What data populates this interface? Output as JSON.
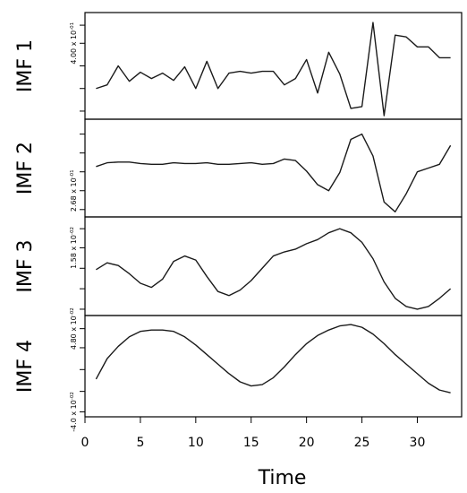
{
  "chart_data": {
    "type": "line",
    "xlabel": "Time",
    "xlim": [
      0,
      34
    ],
    "x_ticks": [
      "0",
      "5",
      "10",
      "15",
      "20",
      "25",
      "30"
    ],
    "x": [
      1,
      2,
      3,
      4,
      5,
      6,
      7,
      8,
      9,
      10,
      11,
      12,
      13,
      14,
      15,
      16,
      17,
      18,
      19,
      20,
      21,
      22,
      23,
      24,
      25,
      26,
      27,
      28,
      29,
      30,
      31,
      32,
      33
    ],
    "panels": [
      {
        "label": "IMF 1",
        "yticks": [
          {
            "label": "",
            "value": -0.55
          },
          {
            "label": "",
            "value": -0.3
          },
          {
            "label": "",
            "value": -0.05
          },
          {
            "label": "4.00 x 10^-01",
            "value": 0.2
          },
          {
            "label": "",
            "value": 0.4
          }
        ],
        "ylim": [
          -0.6,
          0.5
        ],
        "values": [
          -0.3,
          -0.26,
          -0.05,
          -0.22,
          -0.12,
          -0.19,
          -0.13,
          -0.21,
          -0.06,
          -0.3,
          0.0,
          -0.3,
          -0.13,
          -0.11,
          -0.13,
          -0.11,
          -0.11,
          -0.26,
          -0.19,
          0.02,
          -0.35,
          0.1,
          -0.14,
          -0.52,
          -0.5,
          0.43,
          -0.6,
          0.29,
          0.27,
          0.16,
          0.16,
          0.04,
          0.04
        ]
      },
      {
        "label": "IMF 2",
        "yticks": [
          {
            "label": "",
            "value": -0.55
          },
          {
            "label": "2.68 x 10^-01",
            "value": -0.3
          },
          {
            "label": "",
            "value": -0.05
          },
          {
            "label": "",
            "value": 0.2
          },
          {
            "label": "",
            "value": 0.45
          }
        ],
        "ylim": [
          -0.6,
          0.6
        ],
        "values": [
          0.02,
          0.07,
          0.08,
          0.08,
          0.06,
          0.05,
          0.05,
          0.07,
          0.06,
          0.06,
          0.07,
          0.05,
          0.05,
          0.06,
          0.07,
          0.05,
          0.06,
          0.12,
          0.1,
          -0.04,
          -0.22,
          -0.3,
          -0.06,
          0.38,
          0.45,
          0.16,
          -0.45,
          -0.58,
          -0.34,
          -0.05,
          0.0,
          0.05,
          0.3
        ]
      },
      {
        "label": "IMF 3",
        "yticks": [
          {
            "label": "",
            "value": -0.35
          },
          {
            "label": "",
            "value": -0.2
          },
          {
            "label": "",
            "value": -0.05
          },
          {
            "label": "1.58 x 10^-02",
            "value": 0.1
          },
          {
            "label": "",
            "value": 0.24
          }
        ],
        "ylim": [
          -0.37,
          0.3
        ],
        "values": [
          -0.06,
          -0.01,
          -0.03,
          -0.09,
          -0.16,
          -0.19,
          -0.13,
          0.0,
          0.04,
          0.01,
          -0.11,
          -0.22,
          -0.25,
          -0.21,
          -0.14,
          -0.05,
          0.04,
          0.07,
          0.09,
          0.13,
          0.16,
          0.21,
          0.24,
          0.21,
          0.14,
          0.02,
          -0.15,
          -0.27,
          -0.33,
          -0.35,
          -0.33,
          -0.27,
          -0.2
        ]
      },
      {
        "label": "IMF 4",
        "yticks": [
          {
            "label": "-4.0 x 10^-02",
            "value": -0.35
          },
          {
            "label": "",
            "value": -0.2
          },
          {
            "label": "",
            "value": -0.04
          },
          {
            "label": "",
            "value": 0.12
          },
          {
            "label": "4.80 x 10^-02",
            "value": 0.26
          }
        ],
        "ylim": [
          -0.36,
          0.33
        ],
        "values": [
          -0.11,
          0.04,
          0.13,
          0.2,
          0.24,
          0.25,
          0.25,
          0.24,
          0.2,
          0.14,
          0.07,
          0.0,
          -0.07,
          -0.13,
          -0.16,
          -0.15,
          -0.1,
          -0.02,
          0.07,
          0.15,
          0.21,
          0.25,
          0.28,
          0.29,
          0.27,
          0.22,
          0.15,
          0.07,
          0.0,
          -0.07,
          -0.14,
          -0.19,
          -0.21
        ]
      }
    ]
  }
}
